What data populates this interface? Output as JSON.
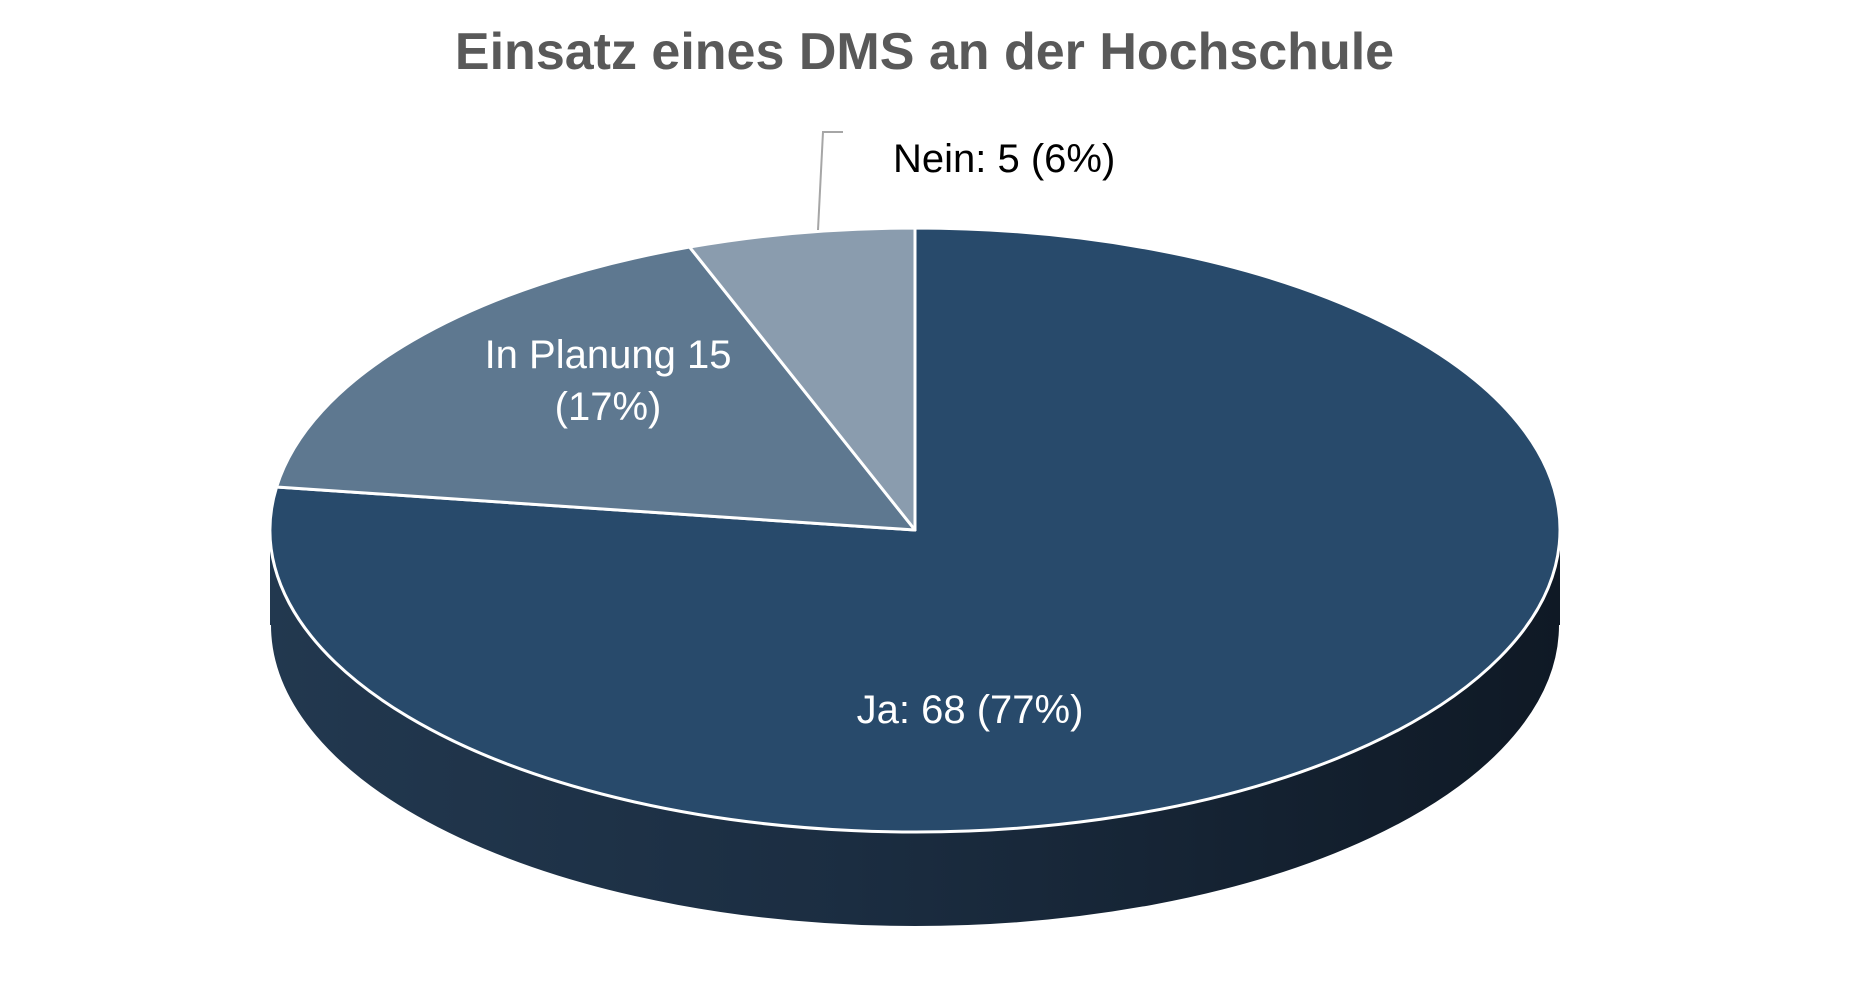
{
  "chart_data": {
    "type": "pie",
    "title": "Einsatz eines DMS an der Hochschule",
    "style": "3d",
    "slices": [
      {
        "name": "Ja",
        "value": 68,
        "percent": 77,
        "label": "Ja: 68 (77%)",
        "color": "#284a6b",
        "sideColor": "#1a2e44",
        "labelColor": "#ffffff"
      },
      {
        "name": "In Planung",
        "value": 15,
        "percent": 17,
        "label": "In Planung 15 (17%)",
        "label_lines": [
          "In Planung 15",
          "(17%)"
        ],
        "color": "#5e7890",
        "labelColor": "#ffffff"
      },
      {
        "name": "Nein",
        "value": 5,
        "percent": 6,
        "label": "Nein: 5 (6%)",
        "color": "#8a9cae",
        "labelColor": "#000000"
      }
    ],
    "legend": "none"
  }
}
